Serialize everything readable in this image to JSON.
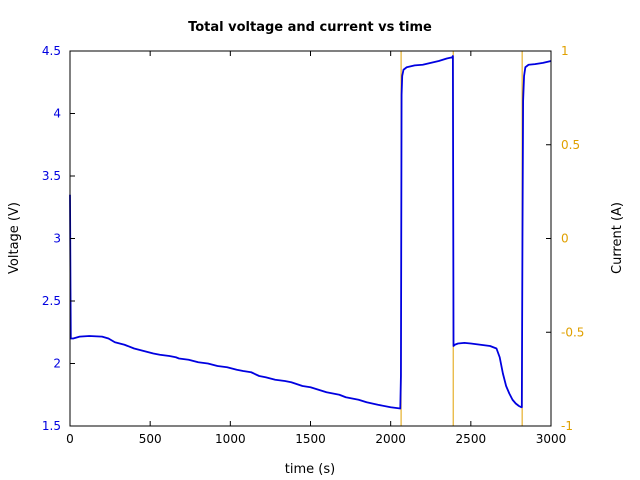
{
  "chart_data": {
    "type": "line",
    "title": "Total voltage and current vs time",
    "xlabel": "time (s)",
    "ylabel_left": "Voltage (V)",
    "ylabel_right": "Current (A)",
    "xlim": [
      0,
      3000
    ],
    "ylim_left": [
      1.5,
      4.5
    ],
    "ylim_right": [
      -1,
      1
    ],
    "x_ticks": [
      0,
      500,
      1000,
      1500,
      2000,
      2500,
      3000
    ],
    "y_left_ticks": [
      1.5,
      2,
      2.5,
      3,
      3.5,
      4,
      4.5
    ],
    "y_right_ticks": [
      -1,
      -0.5,
      0,
      0.5,
      1
    ],
    "grid": false,
    "colors": {
      "voltage": "#0000e0",
      "current": "#e0a000",
      "axis": "#000000"
    },
    "series": [
      {
        "axis": "left",
        "x": [
          0,
          3,
          5,
          20,
          60,
          120,
          200,
          240,
          280,
          340,
          400,
          460,
          520,
          560,
          620,
          660,
          680,
          740,
          800,
          860,
          920,
          980,
          1040,
          1080,
          1130,
          1180,
          1220,
          1280,
          1340,
          1380,
          1450,
          1500,
          1550,
          1600,
          1680,
          1720,
          1800,
          1850,
          1920,
          2000,
          2060,
          2064,
          2068,
          2072,
          2080,
          2100,
          2150,
          2200,
          2250,
          2300,
          2350,
          2385,
          2388,
          2392,
          2400,
          2420,
          2460,
          2500,
          2560,
          2620,
          2660,
          2680,
          2700,
          2720,
          2740,
          2760,
          2780,
          2800,
          2815,
          2818,
          2822,
          2826,
          2832,
          2840,
          2860,
          2900,
          2950,
          3000
        ],
        "y": [
          3.35,
          2.6,
          2.2,
          2.2,
          2.215,
          2.22,
          2.215,
          2.2,
          2.17,
          2.15,
          2.12,
          2.1,
          2.08,
          2.07,
          2.06,
          2.05,
          2.04,
          2.03,
          2.01,
          2.0,
          1.98,
          1.97,
          1.95,
          1.94,
          1.93,
          1.9,
          1.89,
          1.87,
          1.86,
          1.85,
          1.82,
          1.81,
          1.79,
          1.77,
          1.75,
          1.73,
          1.71,
          1.69,
          1.67,
          1.65,
          1.64,
          1.9,
          4.15,
          4.3,
          4.35,
          4.37,
          4.385,
          4.39,
          4.405,
          4.42,
          4.44,
          4.45,
          4.46,
          2.14,
          2.15,
          2.16,
          2.165,
          2.16,
          2.15,
          2.14,
          2.12,
          2.05,
          1.92,
          1.82,
          1.76,
          1.71,
          1.68,
          1.66,
          1.65,
          1.65,
          3.0,
          4.1,
          4.3,
          4.37,
          4.39,
          4.395,
          4.405,
          4.42
        ]
      }
    ],
    "vertical_lines_x": [
      2065,
      2390,
      2820
    ]
  }
}
